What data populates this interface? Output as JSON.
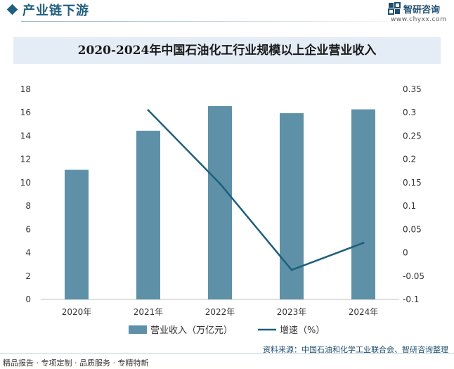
{
  "header": {
    "title": "产业链下游",
    "brand_name": "智研咨询",
    "brand_url": "www.chyxx.com"
  },
  "chart_data": {
    "type": "bar",
    "title": "2020-2024年中国石油化工行业规模以上企业营业收入",
    "categories": [
      "2020年",
      "2021年",
      "2022年",
      "2023年",
      "2024年"
    ],
    "series": [
      {
        "name": "营业收入（万亿元）",
        "type": "bar",
        "axis": "left",
        "values": [
          11.1,
          14.45,
          16.56,
          15.95,
          16.28
        ]
      },
      {
        "name": "增速（%）",
        "type": "line",
        "axis": "right",
        "values": [
          null,
          0.305,
          0.148,
          -0.037,
          0.021
        ]
      }
    ],
    "y_left": {
      "ylim": [
        0,
        18
      ],
      "ticks": [
        "0",
        "2",
        "4",
        "6",
        "8",
        "10",
        "12",
        "14",
        "16",
        "18"
      ]
    },
    "y_right": {
      "ylim": [
        -0.1,
        0.35
      ],
      "ticks": [
        "-0.1",
        "-0.05",
        "0",
        "0.05",
        "0.1",
        "0.15",
        "0.2",
        "0.25",
        "0.3",
        "0.35"
      ]
    },
    "grid": false,
    "legend": "bottom-center",
    "colors": {
      "bar": "#5e91a8",
      "line": "#1d5f7d"
    }
  },
  "footer": {
    "source": "资料来源：中国石油和化学工业联合会、智研咨询整理",
    "tags": "精品报告 · 专项定制 · 品质服务 · 专精特新"
  }
}
